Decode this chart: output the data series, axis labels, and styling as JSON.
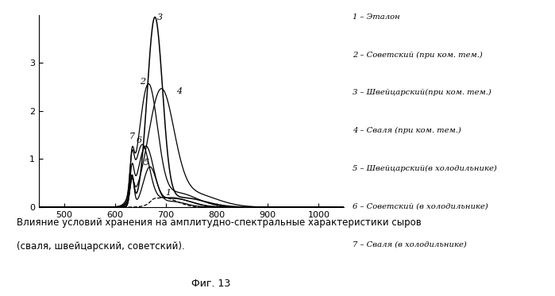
{
  "x_min": 450,
  "x_max": 1050,
  "y_min": 0,
  "y_max": 4.0,
  "x_ticks": [
    500,
    600,
    700,
    800,
    900,
    1000
  ],
  "y_ticks": [
    0,
    1,
    2,
    3
  ],
  "background_color": "#ffffff",
  "line_color": "#000000",
  "caption_line1": "Влияние условий хранения на амплитудно-спектральные характеристики сыров",
  "caption_line2": "(сваля, швейцарский, советский).",
  "fig_label": "Фиг. 13",
  "legend_entries": [
    "1 – Эталон",
    "2 – Советский (при ком. тем.)",
    "3 – Швейцарский(при ком. тем.)",
    "4 – Сваля (при ком. тем.)",
    "5 – Швейцарский(в холодильнике)",
    "6 – Советский (в холодильнике)",
    "7 – Сваля (в холодильнике)"
  ]
}
